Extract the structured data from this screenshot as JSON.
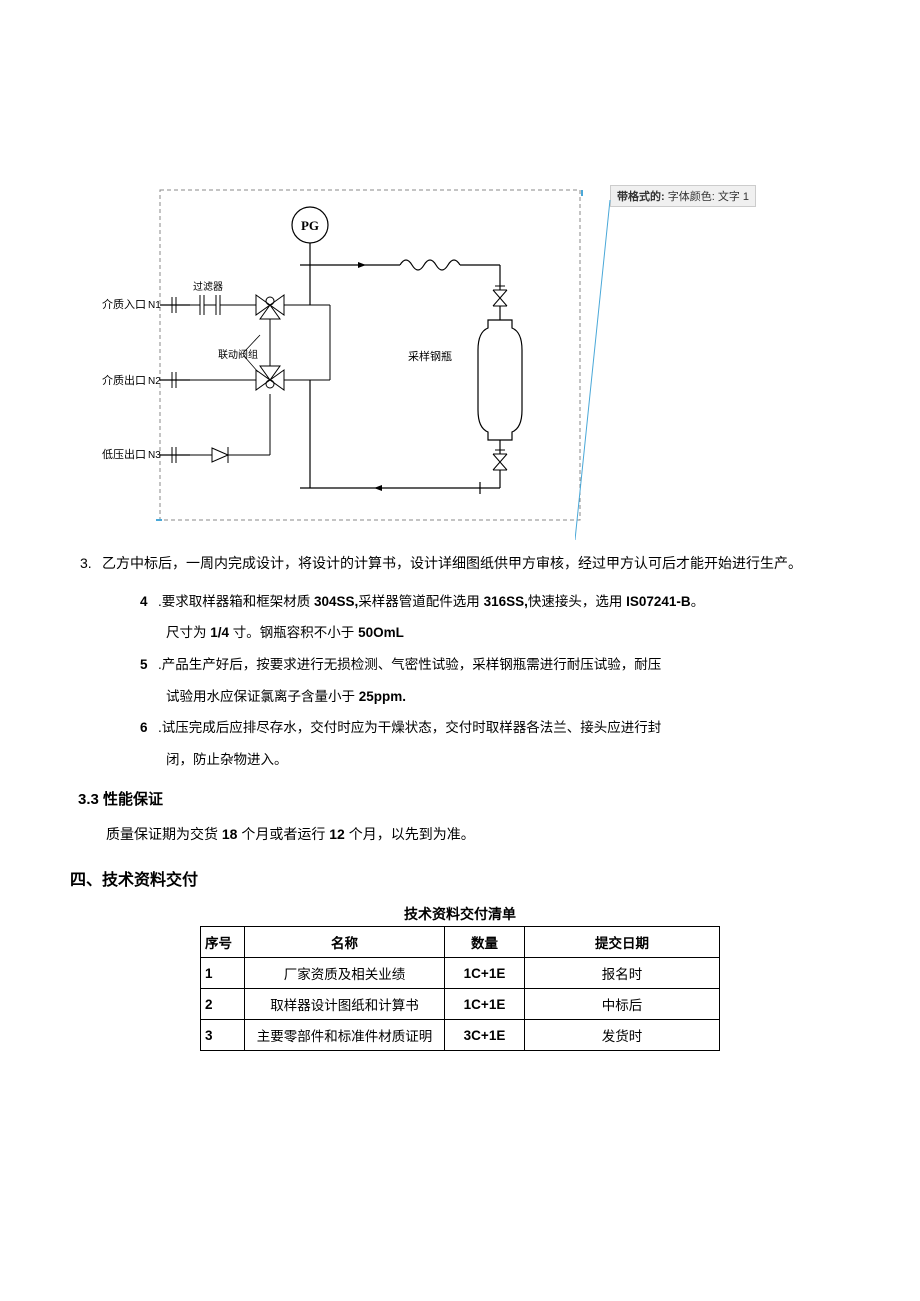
{
  "comment": {
    "label": "带格式的:",
    "value": "字体颜色: 文字 1"
  },
  "diagram": {
    "border_color": "#888888",
    "line_color": "#000000",
    "text_color": "#000000",
    "font_size": 11,
    "pg_label": "PG",
    "ports": {
      "n1": {
        "label": "介质入口",
        "id": "N1",
        "sub": "过滤器"
      },
      "n2": {
        "label": "介质出口",
        "id": "N2",
        "sub": "联动阀组"
      },
      "n3": {
        "label": "低压出口",
        "id": "N3"
      }
    },
    "bottle_label": "采样钢瓶"
  },
  "item3": {
    "num": "3.",
    "text": "乙方中标后，一周内完成设计，将设计的计算书，设计详细图纸供甲方审核，经过甲方认可后才能开始进行生产。"
  },
  "subitems": [
    {
      "num": "4",
      "parts": [
        {
          "t": ".要求取样器箱和框架材质 ",
          "b": false
        },
        {
          "t": "304SS,",
          "b": true
        },
        {
          "t": "采样器管道配件选用 ",
          "b": false
        },
        {
          "t": "316SS,",
          "b": true
        },
        {
          "t": "快速接头，选用 ",
          "b": false
        },
        {
          "t": "IS07241-B",
          "b": true
        },
        {
          "t": "。",
          "b": false
        }
      ],
      "cont_parts": [
        {
          "t": "尺寸为 ",
          "b": false
        },
        {
          "t": "1/4 ",
          "b": true
        },
        {
          "t": "寸。钢瓶容积不小于 ",
          "b": false
        },
        {
          "t": "50OmL",
          "b": true
        }
      ]
    },
    {
      "num": "5",
      "parts": [
        {
          "t": ".产品生产好后，按要求进行无损检测、气密性试验，采样钢瓶需进行耐压试验，耐压",
          "b": false
        }
      ],
      "cont_parts": [
        {
          "t": "试验用水应保证氯离子含量小于 ",
          "b": false
        },
        {
          "t": "25ppm.",
          "b": true
        }
      ]
    },
    {
      "num": "6",
      "parts": [
        {
          "t": ".试压完成后应排尽存水，交付时应为干燥状态，交付时取样器各法兰、接头应进行封",
          "b": false
        }
      ],
      "cont_parts": [
        {
          "t": "闭，防止杂物进入。",
          "b": false
        }
      ]
    }
  ],
  "heading33": "3.3 性能保证",
  "warranty": {
    "parts": [
      {
        "t": "质量保证期为交货 ",
        "b": false
      },
      {
        "t": "18 ",
        "b": true
      },
      {
        "t": "个月或者运行 ",
        "b": false
      },
      {
        "t": "12 ",
        "b": true
      },
      {
        "t": "个月，以先到为准。",
        "b": false
      }
    ]
  },
  "heading4": "四、技术资料交付",
  "table": {
    "title": "技术资料交付清单",
    "headers": [
      "序号",
      "名称",
      "数量",
      "提交日期"
    ],
    "rows": [
      [
        "1",
        "厂家资质及相关业绩",
        "1C+1E",
        "报名时"
      ],
      [
        "2",
        "取样器设计图纸和计算书",
        "1C+1E",
        "中标后"
      ],
      [
        "3",
        "主要零部件和标准件材质证明",
        "3C+1E",
        "发货时"
      ]
    ]
  },
  "colors": {
    "comment_line": "#4aa8d8",
    "diagram_edge_short": "#4aa8d8"
  }
}
